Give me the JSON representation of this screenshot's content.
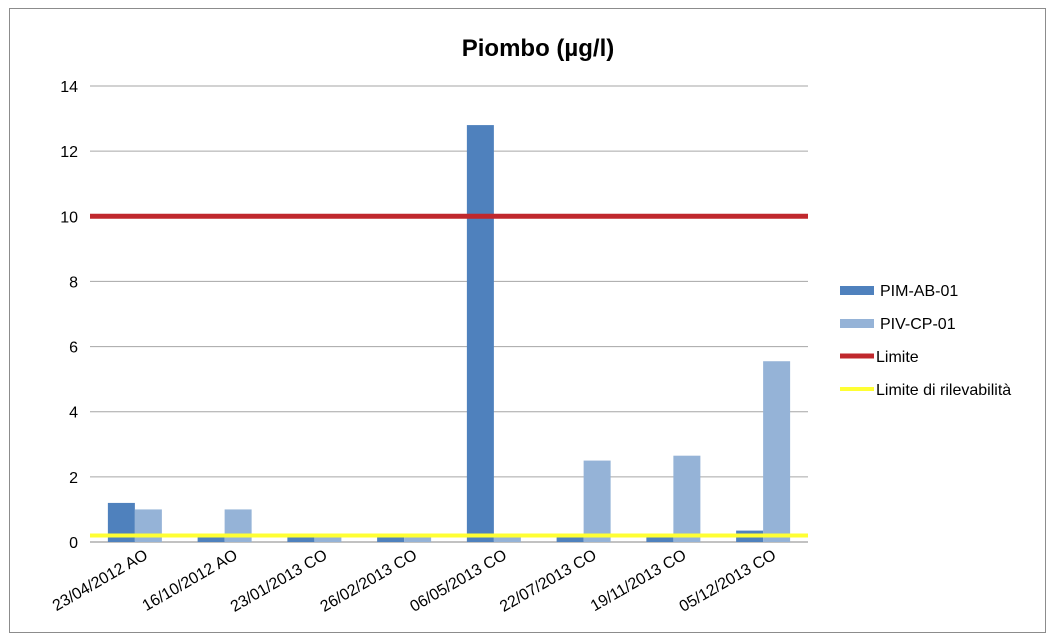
{
  "chart_data": {
    "type": "bar",
    "title": "Piombo (µg/l)",
    "xlabel": "",
    "ylabel": "",
    "ylim": [
      0,
      14
    ],
    "yticks": [
      0,
      2,
      4,
      6,
      8,
      10,
      12,
      14
    ],
    "grid": true,
    "legend_position": "right",
    "categories": [
      "23/04/2012 AO",
      "16/10/2012 AO",
      "23/01/2013 CO",
      "26/02/2013 CO",
      "06/05/2013 CO",
      "22/07/2013 CO",
      "19/11/2013 CO",
      "05/12/2013 CO"
    ],
    "series": [
      {
        "name": "PIM-AB-01",
        "type": "bar",
        "color": "#4f81bd",
        "values": [
          1.2,
          0.15,
          0.15,
          0.15,
          12.8,
          0.15,
          0.15,
          0.35
        ]
      },
      {
        "name": "PIV-CP-01",
        "type": "bar",
        "color": "#95b3d7",
        "values": [
          1.0,
          1.0,
          0.15,
          0.15,
          0.15,
          2.5,
          2.65,
          5.55
        ]
      },
      {
        "name": "Limite",
        "type": "line",
        "color": "#c0282d",
        "value": 10
      },
      {
        "name": "Limite di rilevabilità",
        "type": "line",
        "color": "#ffff33",
        "value": 0.2
      }
    ]
  }
}
